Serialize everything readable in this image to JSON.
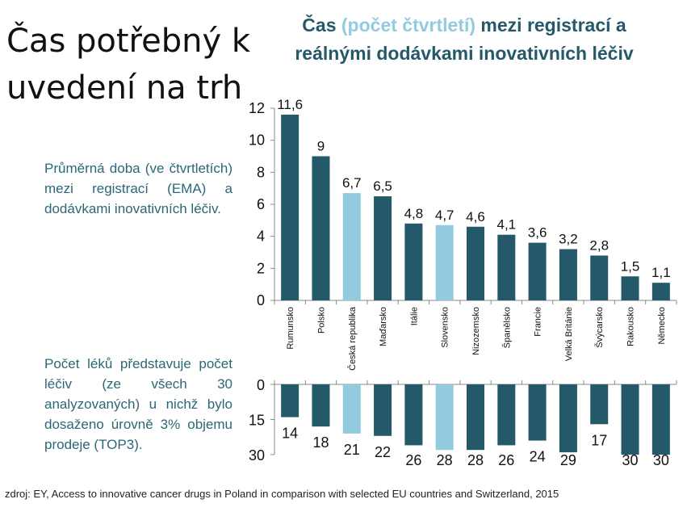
{
  "slide": {
    "title_line1": "Čas potřebný k",
    "title_line2": "uvedení na trh",
    "chart_title_a": "Čas ",
    "chart_title_b": "(počet čtvrtletí)",
    "chart_title_c": " mezi registrací a reálnými dodávkami inovativních léčiv",
    "paragraph1": "Průměrná doba (ve čtvrtletích) mezi registrací (EMA) a dodávkami inovativních léčiv.",
    "paragraph2": "Počet léků představuje počet léčiv (ze všech 30 analyzovaných) u nichž bylo dosaženo úrovně 3% objemu prodeje (TOP3).",
    "source": "zdroj: EY, Access to innovative cancer drugs in Poland in comparison with selected EU countries and Switzerland, 2015"
  },
  "colors": {
    "dark": "#24596a",
    "light": "#92cbe0"
  },
  "chart_data": [
    {
      "type": "bar",
      "title": "Čas (počet čtvrtletí) mezi registrací a reálnými dodávkami inovativních léčiv",
      "categories": [
        "Rumunsko",
        "Polsko",
        "Česká republika",
        "Maďarsko",
        "Itálie",
        "Slovensko",
        "Nizozemsko",
        "Španělsko",
        "Francie",
        "Velká Británie",
        "Švýcarsko",
        "Rakousko",
        "Německo"
      ],
      "values": [
        11.6,
        9,
        6.7,
        6.5,
        4.8,
        4.7,
        4.6,
        4.1,
        3.6,
        3.2,
        2.8,
        1.5,
        1.1
      ],
      "value_labels": [
        "11,6",
        "9",
        "6,7",
        "6,5",
        "4,8",
        "4,7",
        "4,6",
        "4,1",
        "3,6",
        "3,2",
        "2,8",
        "1,5",
        "1,1"
      ],
      "highlight": [
        "Česká republika",
        "Slovensko"
      ],
      "ylim": [
        0,
        12
      ],
      "yticks": [
        "0",
        "2",
        "4",
        "6",
        "8",
        "10",
        "12"
      ]
    },
    {
      "type": "bar",
      "orientation": "downward",
      "categories": [
        "Rumunsko",
        "Polsko",
        "Česká republika",
        "Maďarsko",
        "Itálie",
        "Slovensko",
        "Nizozemsko",
        "Španělsko",
        "Francie",
        "Velká Británie",
        "Švýcarsko",
        "Rakousko",
        "Německo"
      ],
      "values": [
        14,
        18,
        21,
        22,
        26,
        28,
        28,
        26,
        24,
        29,
        17,
        30,
        30
      ],
      "highlight": [
        "Česká republika",
        "Slovensko"
      ],
      "ylim": [
        0,
        30
      ],
      "yticks": [
        "0",
        "15",
        "30"
      ]
    }
  ]
}
